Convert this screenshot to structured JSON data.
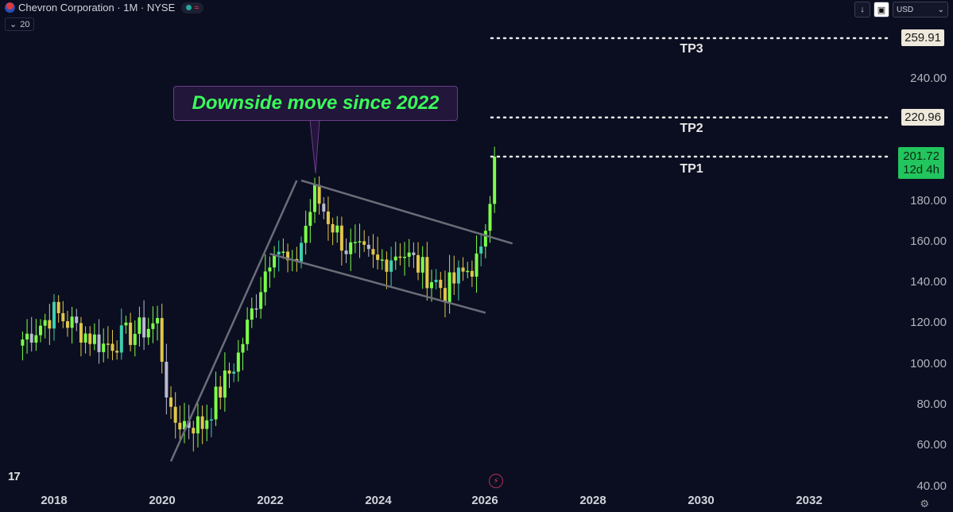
{
  "header": {
    "symbol_title": "Chevron Corporation · 1M · NYSE",
    "status_wave": "≈",
    "indicator_chip": "20",
    "currency": "USD"
  },
  "callout": {
    "text": "Downside move since 2022"
  },
  "price_axis": [
    "240.00",
    "180.00",
    "160.00",
    "140.00",
    "120.00",
    "100.00",
    "80.00",
    "60.00",
    "40.00"
  ],
  "time_axis": [
    "2018",
    "2020",
    "2022",
    "2024",
    "2026",
    "2028",
    "2030",
    "2032"
  ],
  "targets": [
    {
      "label": "TP3",
      "price": "259.91"
    },
    {
      "label": "TP2",
      "price": "220.96"
    },
    {
      "label": "TP1",
      "price": "201.72"
    }
  ],
  "current_price": {
    "price": "201.72",
    "countdown": "12d 4h"
  },
  "colors": {
    "up": "#7cff4a",
    "down": "#e0c64a",
    "alt_up": "#3ecfae",
    "alt_down": "#b9b9d3",
    "background": "#0b0e20"
  },
  "chart_data": {
    "type": "candlestick",
    "symbol": "Chevron Corporation",
    "interval": "1M",
    "exchange": "NYSE",
    "ylim": [
      40,
      270
    ],
    "x_range": [
      "2017",
      "2033"
    ],
    "series_close_approx": [
      {
        "x": "2017-06",
        "y": 112
      },
      {
        "x": "2018-01",
        "y": 125
      },
      {
        "x": "2018-12",
        "y": 109
      },
      {
        "x": "2019-12",
        "y": 120
      },
      {
        "x": "2020-03",
        "y": 72
      },
      {
        "x": "2020-10",
        "y": 70
      },
      {
        "x": "2021-06",
        "y": 104
      },
      {
        "x": "2022-02",
        "y": 160
      },
      {
        "x": "2022-06",
        "y": 145
      },
      {
        "x": "2022-11",
        "y": 183
      },
      {
        "x": "2023-06",
        "y": 157
      },
      {
        "x": "2024-01",
        "y": 149
      },
      {
        "x": "2024-06",
        "y": 156
      },
      {
        "x": "2025-04",
        "y": 136
      },
      {
        "x": "2025-12",
        "y": 152
      },
      {
        "x": "2026-03",
        "y": 201.72
      }
    ],
    "channel": {
      "upper": [
        {
          "x": "2022-08",
          "y": 190
        },
        {
          "x": "2026-07",
          "y": 159
        }
      ],
      "lower": [
        {
          "x": "2022-01",
          "y": 154
        },
        {
          "x": "2026-01",
          "y": 125
        }
      ],
      "trendline": [
        {
          "x": "2020-03",
          "y": 52
        },
        {
          "x": "2022-07",
          "y": 190
        }
      ]
    },
    "targets": [
      259.91,
      220.96,
      201.72
    ]
  }
}
